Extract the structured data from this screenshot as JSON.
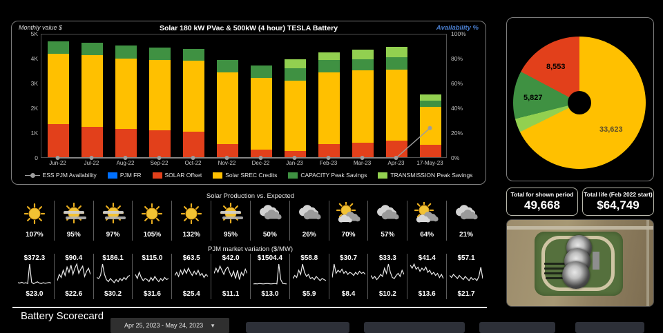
{
  "bar_panel": {
    "title": "Solar 180 kW PVac & 500kW (4 hour) TESLA Battery",
    "left_axis_label": "Monthly value $",
    "right_axis_label": "Availability %",
    "left_ticks": [
      "5K",
      "4K",
      "3K",
      "2K",
      "1K",
      "0"
    ],
    "right_ticks": [
      "100%",
      "80%",
      "60%",
      "40%",
      "20%",
      "0%"
    ],
    "legend": [
      {
        "label": "ESS PJM Availability",
        "type": "linedot",
        "color": "#9d9d9d"
      },
      {
        "label": "PJM FR",
        "type": "swatch",
        "color": "#0070FF"
      },
      {
        "label": "SOLAR Offset",
        "type": "swatch",
        "color": "#E2401B"
      },
      {
        "label": "Solar SREC Credits",
        "type": "swatch",
        "color": "#FFC000"
      },
      {
        "label": "CAPACITY Peak Savings",
        "type": "swatch",
        "color": "#3F9142"
      },
      {
        "label": "TRANSMISSION Peak Savings",
        "type": "swatch",
        "color": "#92D050"
      }
    ]
  },
  "chart_data": [
    {
      "type": "bar",
      "title": "Solar 180 kW PVac & 500kW (4 hour) TESLA Battery",
      "categories": [
        "Jun-22",
        "Jul-22",
        "Aug-22",
        "Sep-22",
        "Oct-22",
        "Nov-22",
        "Dec-22",
        "Jan-23",
        "Feb-23",
        "Mar-23",
        "Apr-23",
        "17-May-23"
      ],
      "ylabel": "Monthly value $",
      "y2label": "Availability %",
      "ylim": [
        0,
        5000
      ],
      "y2lim": [
        0,
        100
      ],
      "units": "thousand $ per stacked segment",
      "series": [
        {
          "name": "SOLAR Offset",
          "color": "#E2401B",
          "values": [
            1.32,
            1.22,
            1.13,
            1.07,
            1.02,
            0.52,
            0.31,
            0.25,
            0.52,
            0.57,
            0.68,
            0.5
          ]
        },
        {
          "name": "Solar SREC Credits",
          "color": "#FFC000",
          "values": [
            2.85,
            2.88,
            2.85,
            2.86,
            2.87,
            2.9,
            2.88,
            2.83,
            2.9,
            2.92,
            2.85,
            1.54
          ]
        },
        {
          "name": "CAPACITY Peak Savings",
          "color": "#3F9142",
          "values": [
            0.51,
            0.52,
            0.52,
            0.5,
            0.48,
            0.51,
            0.51,
            0.5,
            0.51,
            0.46,
            0.49,
            0.25
          ]
        },
        {
          "name": "TRANSMISSION Peak Savings",
          "color": "#92D050",
          "values": [
            0,
            0,
            0,
            0,
            0,
            0,
            0,
            0.37,
            0.3,
            0.38,
            0.43,
            0.23
          ]
        },
        {
          "name": "PJM FR",
          "color": "#0070FF",
          "values": [
            0,
            0,
            0,
            0,
            0,
            0,
            0,
            0,
            0,
            0,
            0,
            0
          ]
        }
      ],
      "line_series": {
        "name": "ESS PJM Availability",
        "color": "#9d9d9d",
        "values_pct": [
          0,
          0,
          0,
          0,
          0,
          0,
          0,
          0,
          0,
          0,
          0,
          24
        ]
      }
    },
    {
      "type": "pie",
      "donut": true,
      "labels": [
        "Solar SREC Credits",
        "TRANSMISSION Peak Savings",
        "CAPACITY Peak Savings",
        "SOLAR Offset"
      ],
      "values": [
        33623,
        1665,
        5827,
        8553
      ],
      "displayed_labels": [
        "33,623",
        "",
        "5,827",
        "8,553"
      ],
      "colors": [
        "#FFC000",
        "#92D050",
        "#3F9142",
        "#E2401B"
      ]
    },
    {
      "type": "line",
      "subtype": "sparklines",
      "title": "PJM market variation ($/MW)",
      "cells": [
        {
          "max": "$372.3",
          "min": "$23.0",
          "points": [
            0.1,
            0.08,
            0.12,
            0.07,
            0.1,
            0.06,
            1.0,
            0.12,
            0.05,
            0.1,
            0.14,
            0.08,
            0.06,
            0.1,
            0.07,
            0.09,
            0.11,
            0.08
          ]
        },
        {
          "max": "$90.4",
          "min": "$22.6",
          "points": [
            0.2,
            0.5,
            0.35,
            0.7,
            0.45,
            0.85,
            0.6,
            0.95,
            0.5,
            0.8,
            1.0,
            0.55,
            0.75,
            0.9,
            0.4,
            0.65,
            0.8,
            0.5
          ]
        },
        {
          "max": "$186.1",
          "min": "$30.2",
          "points": [
            0.35,
            0.3,
            0.45,
            1.0,
            0.5,
            0.25,
            0.15,
            0.3,
            0.2,
            0.1,
            0.25,
            0.15,
            0.3,
            0.2,
            0.35,
            0.25,
            0.4,
            0.45
          ]
        },
        {
          "max": "$115.0",
          "min": "$31.6",
          "points": [
            0.5,
            0.3,
            0.6,
            0.35,
            0.2,
            0.3,
            0.25,
            0.15,
            0.35,
            0.2,
            0.4,
            0.25,
            0.15,
            0.3,
            0.2,
            0.35,
            0.25,
            0.3
          ]
        },
        {
          "max": "$63.5",
          "min": "$25.4",
          "points": [
            0.45,
            0.6,
            0.4,
            0.7,
            0.5,
            0.75,
            0.55,
            0.8,
            0.6,
            0.45,
            0.65,
            0.5,
            0.7,
            0.45,
            0.55,
            0.35,
            0.5,
            0.4
          ]
        },
        {
          "max": "$42.0",
          "min": "$11.1",
          "points": [
            0.55,
            0.8,
            0.6,
            0.9,
            0.7,
            0.5,
            0.75,
            0.85,
            0.6,
            0.4,
            0.65,
            0.3,
            0.7,
            0.25,
            0.6,
            0.45,
            0.75,
            0.55
          ]
        },
        {
          "max": "$1504.4",
          "min": "$13.0",
          "points": [
            0.04,
            0.05,
            0.04,
            0.06,
            0.05,
            0.04,
            0.05,
            0.06,
            0.05,
            0.04,
            0.05,
            0.06,
            0.04,
            1.0,
            0.25,
            0.06,
            0.05,
            0.04
          ]
        },
        {
          "max": "$58.8",
          "min": "$5.9",
          "points": [
            0.3,
            0.45,
            0.35,
            0.7,
            0.5,
            1.0,
            0.6,
            0.4,
            0.5,
            0.3,
            0.35,
            0.25,
            0.4,
            0.3,
            0.2,
            0.3,
            0.25,
            0.2
          ]
        },
        {
          "max": "$30.7",
          "min": "$8.4",
          "points": [
            0.35,
            1.0,
            0.55,
            0.7,
            0.6,
            0.75,
            0.55,
            0.65,
            0.5,
            0.6,
            0.55,
            0.45,
            0.6,
            0.5,
            0.65,
            0.55,
            0.6,
            0.5
          ]
        },
        {
          "max": "$33.3",
          "min": "$10.2",
          "points": [
            0.45,
            0.3,
            0.4,
            0.25,
            0.35,
            0.5,
            0.4,
            0.8,
            0.55,
            1.0,
            0.6,
            0.35,
            0.3,
            0.45,
            0.55,
            0.4,
            0.7,
            0.5
          ]
        },
        {
          "max": "$41.4",
          "min": "$13.6",
          "points": [
            0.95,
            0.8,
            1.0,
            0.75,
            0.85,
            0.65,
            0.8,
            0.7,
            0.85,
            0.6,
            0.7,
            0.5,
            0.6,
            0.45,
            0.55,
            0.35,
            0.5,
            0.3
          ]
        },
        {
          "max": "$57.1",
          "min": "$21.7",
          "points": [
            0.45,
            0.35,
            0.5,
            0.4,
            0.3,
            0.45,
            0.35,
            0.25,
            0.4,
            0.3,
            0.2,
            0.35,
            0.25,
            0.3,
            0.2,
            0.4,
            0.85,
            0.3
          ]
        }
      ]
    }
  ],
  "weather": {
    "title": "Solar Production vs. Expected",
    "items": [
      {
        "icon": "sunny",
        "pct": "107%"
      },
      {
        "icon": "mostly-sunny",
        "pct": "95%"
      },
      {
        "icon": "mostly-sunny",
        "pct": "97%"
      },
      {
        "icon": "sunny",
        "pct": "105%"
      },
      {
        "icon": "sunny",
        "pct": "132%"
      },
      {
        "icon": "mostly-sunny",
        "pct": "95%"
      },
      {
        "icon": "cloudy",
        "pct": "50%"
      },
      {
        "icon": "cloudy",
        "pct": "26%"
      },
      {
        "icon": "partly-cloudy",
        "pct": "70%"
      },
      {
        "icon": "cloudy",
        "pct": "57%"
      },
      {
        "icon": "partly-cloudy",
        "pct": "64%"
      },
      {
        "icon": "cloudy",
        "pct": "21%"
      }
    ]
  },
  "pjm": {
    "title": "PJM market variation ($/MW)"
  },
  "totals": {
    "shown_period": {
      "label": "Total for shown period",
      "value": "49,668"
    },
    "life": {
      "label": "Total life (Feb 2022 start)",
      "value": "$64,749"
    }
  },
  "scorecard": {
    "title": "Battery Scorecard",
    "date_range": "Apr 25, 2023 - May 24, 2023",
    "caret": "▼",
    "buttons": [
      "",
      "",
      "",
      ""
    ]
  }
}
